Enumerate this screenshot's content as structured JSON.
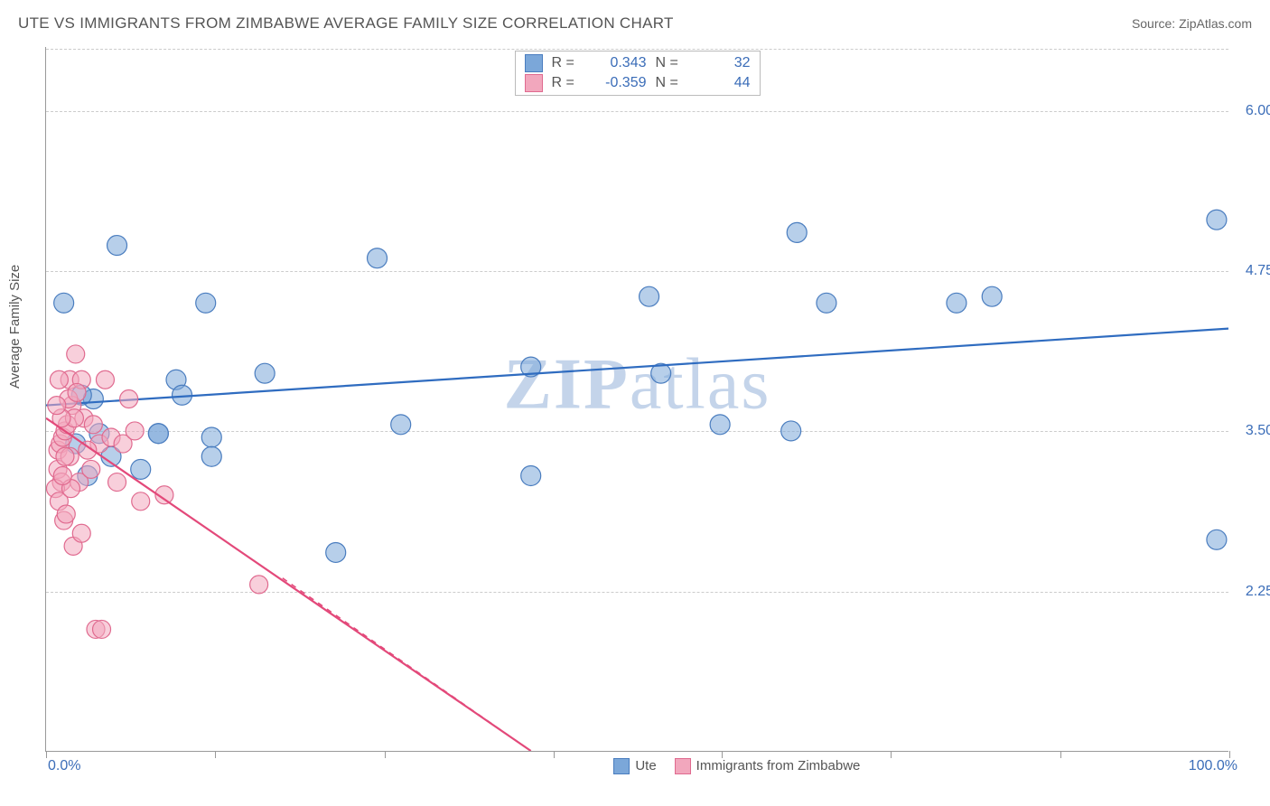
{
  "header": {
    "title": "UTE VS IMMIGRANTS FROM ZIMBABWE AVERAGE FAMILY SIZE CORRELATION CHART",
    "source": "Source: ZipAtlas.com"
  },
  "watermark": {
    "zip": "ZIP",
    "atlas": "atlas"
  },
  "chart": {
    "type": "scatter",
    "ylabel": "Average Family Size",
    "xlim": [
      0,
      100
    ],
    "ylim": [
      1.0,
      6.5
    ],
    "ytick_labels": [
      "6.00",
      "4.75",
      "3.50",
      "2.25"
    ],
    "ytick_values": [
      6.0,
      4.75,
      3.5,
      2.25
    ],
    "xtick_positions": [
      0,
      14.3,
      28.6,
      42.9,
      57.1,
      71.4,
      85.7,
      100
    ],
    "x_axis_min_label": "0.0%",
    "x_axis_max_label": "100.0%",
    "grid_color": "#cccccc",
    "background_color": "#ffffff",
    "axis_color": "#999999",
    "tick_label_color": "#3b6db8",
    "series": [
      {
        "name": "Ute",
        "label": "Ute",
        "color": "#7ba7d9",
        "stroke": "#4a7dbf",
        "line_color": "#2f6cc0",
        "r_label": "R =",
        "r_value": "0.343",
        "n_label": "N =",
        "n_value": "32",
        "trend": {
          "x1": 0,
          "y1": 3.7,
          "x2": 100,
          "y2": 4.3
        },
        "marker_radius": 11,
        "points": [
          {
            "x": 1.5,
            "y": 4.5
          },
          {
            "x": 6.0,
            "y": 4.95
          },
          {
            "x": 28.0,
            "y": 4.85
          },
          {
            "x": 51.0,
            "y": 4.55
          },
          {
            "x": 63.5,
            "y": 5.05
          },
          {
            "x": 77.0,
            "y": 4.5
          },
          {
            "x": 80.0,
            "y": 4.55
          },
          {
            "x": 99.0,
            "y": 5.15
          },
          {
            "x": 99.0,
            "y": 2.65
          },
          {
            "x": 66.0,
            "y": 4.5
          },
          {
            "x": 57.0,
            "y": 3.55
          },
          {
            "x": 13.5,
            "y": 4.5
          },
          {
            "x": 41.0,
            "y": 3.15
          },
          {
            "x": 30.0,
            "y": 3.55
          },
          {
            "x": 18.5,
            "y": 3.95
          },
          {
            "x": 14.0,
            "y": 3.45
          },
          {
            "x": 14.0,
            "y": 3.3
          },
          {
            "x": 9.5,
            "y": 3.48
          },
          {
            "x": 9.5,
            "y": 3.48
          },
          {
            "x": 8.0,
            "y": 3.2
          },
          {
            "x": 11.0,
            "y": 3.9
          },
          {
            "x": 11.5,
            "y": 3.78
          },
          {
            "x": 5.5,
            "y": 3.3
          },
          {
            "x": 4.5,
            "y": 3.48
          },
          {
            "x": 4.0,
            "y": 3.75
          },
          {
            "x": 24.5,
            "y": 2.55
          },
          {
            "x": 3.0,
            "y": 3.78
          },
          {
            "x": 3.5,
            "y": 3.15
          },
          {
            "x": 41.0,
            "y": 4.0
          },
          {
            "x": 52.0,
            "y": 3.95
          },
          {
            "x": 63.0,
            "y": 3.5
          },
          {
            "x": 2.5,
            "y": 3.4
          }
        ]
      },
      {
        "name": "Immigrants from Zimbabwe",
        "label": "Immigrants from Zimbabwe",
        "color": "#f2a7bd",
        "stroke": "#e06a8f",
        "line_color": "#e3497a",
        "r_label": "R =",
        "r_value": "-0.359",
        "n_label": "N =",
        "n_value": "44",
        "trend": {
          "x1": 0,
          "y1": 3.6,
          "x2": 41,
          "y2": 1.0
        },
        "extrapolate": {
          "x1": 20,
          "y1": 2.35,
          "x2": 41,
          "y2": 1.0
        },
        "marker_radius": 10,
        "points": [
          {
            "x": 1.0,
            "y": 3.35
          },
          {
            "x": 1.2,
            "y": 3.4
          },
          {
            "x": 1.4,
            "y": 3.45
          },
          {
            "x": 1.6,
            "y": 3.5
          },
          {
            "x": 1.0,
            "y": 3.2
          },
          {
            "x": 1.3,
            "y": 3.1
          },
          {
            "x": 2.0,
            "y": 3.9
          },
          {
            "x": 2.2,
            "y": 3.7
          },
          {
            "x": 2.5,
            "y": 4.1
          },
          {
            "x": 1.8,
            "y": 3.55
          },
          {
            "x": 0.8,
            "y": 3.05
          },
          {
            "x": 1.1,
            "y": 2.95
          },
          {
            "x": 2.8,
            "y": 3.1
          },
          {
            "x": 3.0,
            "y": 3.9
          },
          {
            "x": 3.2,
            "y": 3.6
          },
          {
            "x": 4.0,
            "y": 3.55
          },
          {
            "x": 4.5,
            "y": 3.4
          },
          {
            "x": 5.0,
            "y": 3.9
          },
          {
            "x": 5.5,
            "y": 3.45
          },
          {
            "x": 6.0,
            "y": 3.1
          },
          {
            "x": 6.5,
            "y": 3.4
          },
          {
            "x": 7.0,
            "y": 3.75
          },
          {
            "x": 7.5,
            "y": 3.5
          },
          {
            "x": 8.0,
            "y": 2.95
          },
          {
            "x": 3.5,
            "y": 3.35
          },
          {
            "x": 3.8,
            "y": 3.2
          },
          {
            "x": 1.5,
            "y": 2.8
          },
          {
            "x": 1.7,
            "y": 2.85
          },
          {
            "x": 2.3,
            "y": 2.6
          },
          {
            "x": 3.0,
            "y": 2.7
          },
          {
            "x": 4.2,
            "y": 1.95
          },
          {
            "x": 4.7,
            "y": 1.95
          },
          {
            "x": 10.0,
            "y": 3.0
          },
          {
            "x": 18.0,
            "y": 2.3
          },
          {
            "x": 2.0,
            "y": 3.3
          },
          {
            "x": 2.4,
            "y": 3.6
          },
          {
            "x": 1.9,
            "y": 3.75
          },
          {
            "x": 1.3,
            "y": 3.6
          },
          {
            "x": 0.9,
            "y": 3.7
          },
          {
            "x": 1.1,
            "y": 3.9
          },
          {
            "x": 2.6,
            "y": 3.8
          },
          {
            "x": 1.6,
            "y": 3.3
          },
          {
            "x": 2.1,
            "y": 3.05
          },
          {
            "x": 1.4,
            "y": 3.15
          }
        ]
      }
    ]
  }
}
